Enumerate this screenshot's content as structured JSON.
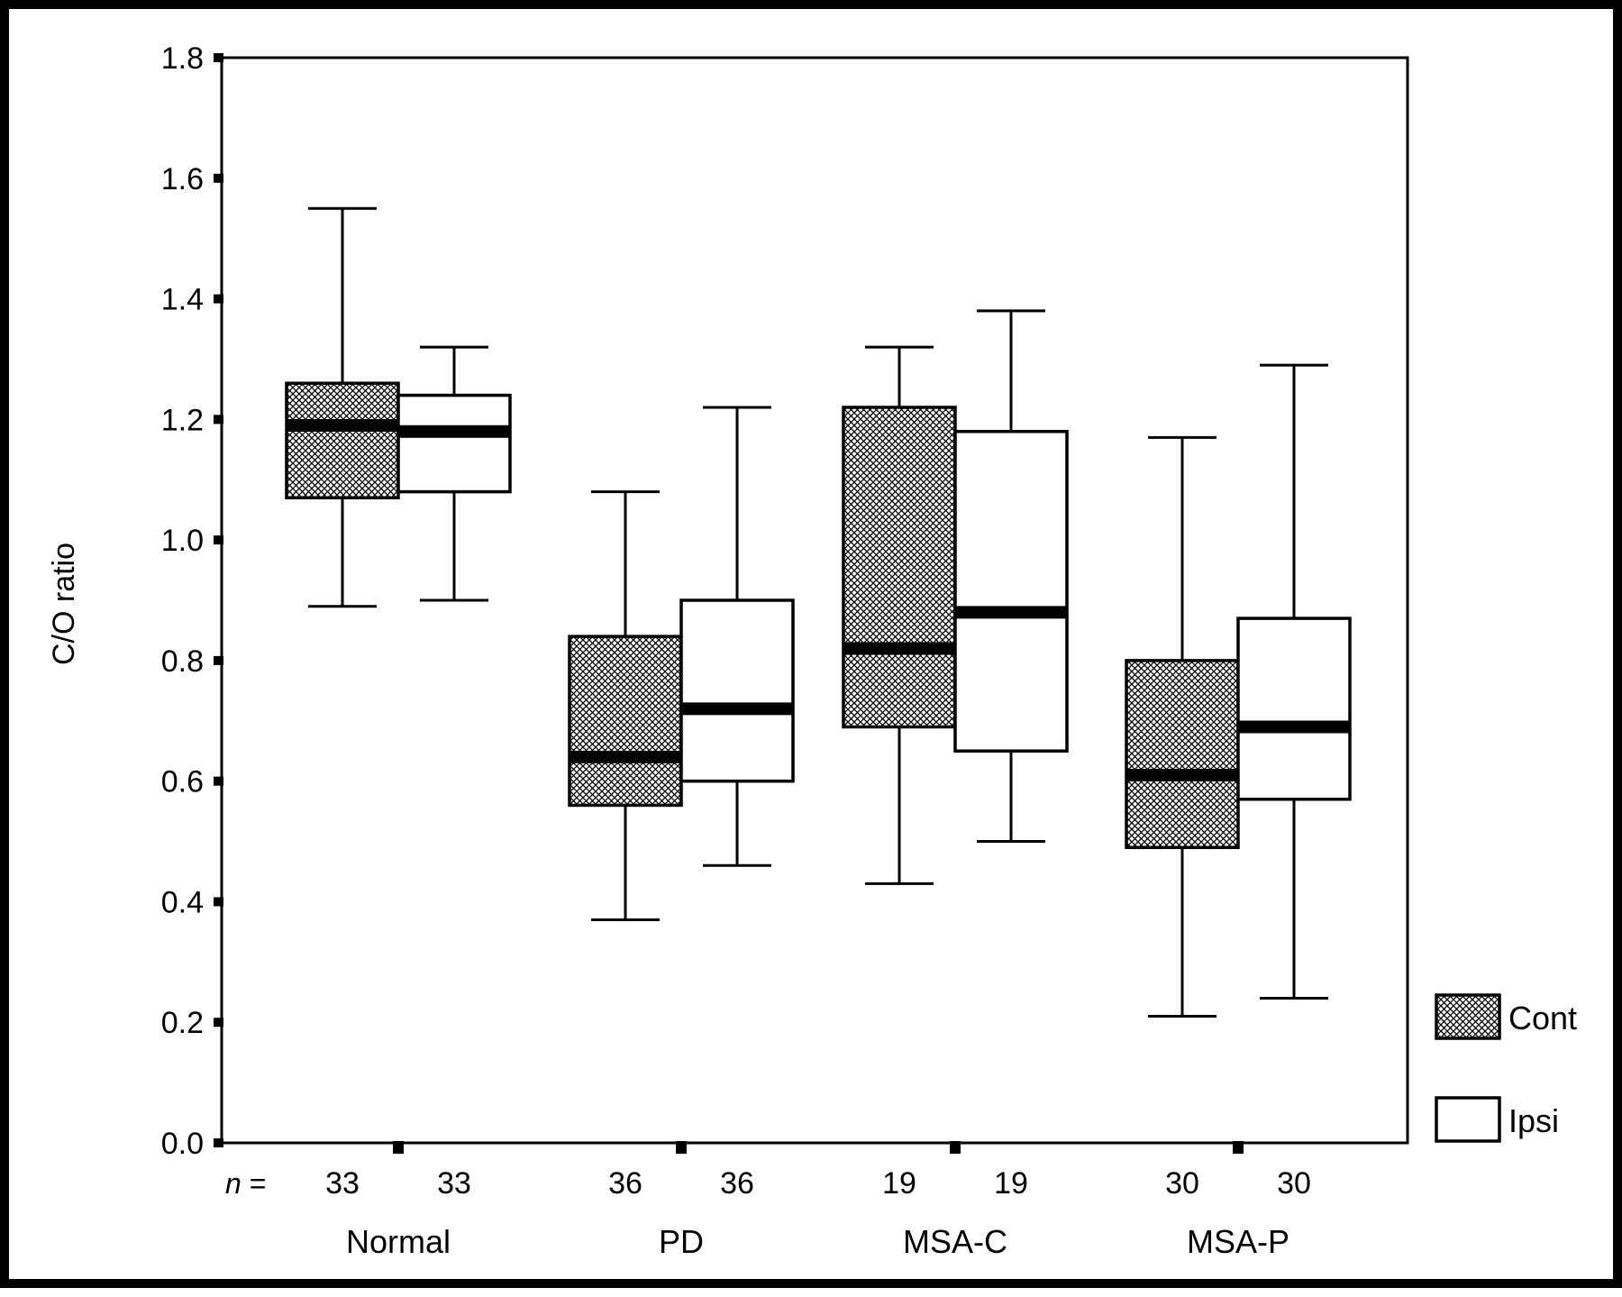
{
  "chart_data": {
    "type": "box",
    "ylabel": "C/O ratio",
    "ylim": [
      0.0,
      1.8
    ],
    "yticks": [
      "0.0",
      "0.2",
      "0.4",
      "0.6",
      "0.8",
      "1.0",
      "1.2",
      "1.4",
      "1.6",
      "1.8"
    ],
    "n_label": "n =",
    "categories": [
      "Normal",
      "PD",
      "MSA-C",
      "MSA-P"
    ],
    "series": [
      {
        "name": "Cont",
        "pattern": "crosshatch",
        "n": [
          "33",
          "36",
          "19",
          "30"
        ],
        "boxes": [
          {
            "whisker_low": 0.89,
            "q1": 1.07,
            "median": 1.19,
            "q3": 1.26,
            "whisker_high": 1.55
          },
          {
            "whisker_low": 0.37,
            "q1": 0.56,
            "median": 0.64,
            "q3": 0.84,
            "whisker_high": 1.08
          },
          {
            "whisker_low": 0.43,
            "q1": 0.69,
            "median": 0.82,
            "q3": 1.22,
            "whisker_high": 1.32
          },
          {
            "whisker_low": 0.21,
            "q1": 0.49,
            "median": 0.61,
            "q3": 0.8,
            "whisker_high": 1.17
          }
        ]
      },
      {
        "name": "Ipsi",
        "pattern": "none",
        "n": [
          "33",
          "36",
          "19",
          "30"
        ],
        "boxes": [
          {
            "whisker_low": 0.9,
            "q1": 1.08,
            "median": 1.18,
            "q3": 1.24,
            "whisker_high": 1.32
          },
          {
            "whisker_low": 0.46,
            "q1": 0.6,
            "median": 0.72,
            "q3": 0.9,
            "whisker_high": 1.22
          },
          {
            "whisker_low": 0.5,
            "q1": 0.65,
            "median": 0.88,
            "q3": 1.18,
            "whisker_high": 1.38
          },
          {
            "whisker_low": 0.24,
            "q1": 0.57,
            "median": 0.69,
            "q3": 0.87,
            "whisker_high": 1.29
          }
        ]
      }
    ],
    "legend": {
      "position": "bottom-right",
      "entries": [
        "Cont",
        "Ipsi"
      ]
    },
    "colors": {
      "fill_open": "#ffffff",
      "line": "#000000"
    }
  }
}
